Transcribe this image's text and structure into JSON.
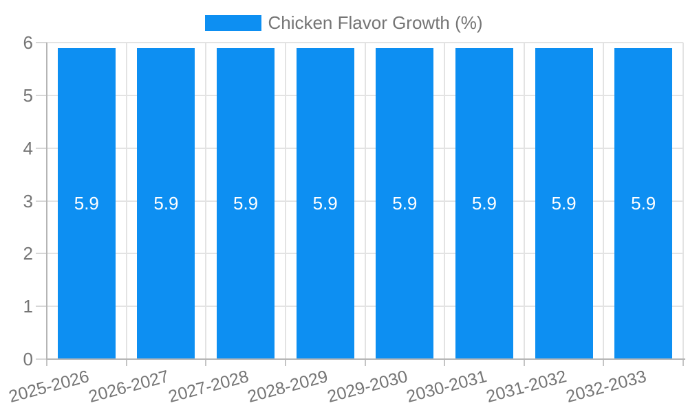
{
  "chart_data": {
    "type": "bar",
    "title": "",
    "legend": {
      "label": "Chicken Flavor Growth (%)",
      "position": "top-center"
    },
    "categories": [
      "2025-2026",
      "2026-2027",
      "2027-2028",
      "2028-2029",
      "2029-2030",
      "2030-2031",
      "2031-2032",
      "2032-2033"
    ],
    "series": [
      {
        "name": "Chicken Flavor Growth (%)",
        "color": "#0D8FF2",
        "values": [
          5.9,
          5.9,
          5.9,
          5.9,
          5.9,
          5.9,
          5.9,
          5.9
        ]
      }
    ],
    "value_labels": [
      "5.9",
      "5.9",
      "5.9",
      "5.9",
      "5.9",
      "5.9",
      "5.9",
      "5.9"
    ],
    "value_label_color": "#FFFFFF",
    "xlabel": "",
    "ylabel": "",
    "ylim": [
      0,
      6
    ],
    "yticks": [
      0,
      1,
      2,
      3,
      4,
      5,
      6
    ],
    "x_tick_rotation_deg": -15,
    "grid": true,
    "style": {
      "background": "#FFFFFF",
      "grid_color": "#E3E3E3",
      "tick_stub_color": "#D6D6D6",
      "axis_line_color": "#B5B5B5",
      "x_tick_color": "#C4C4C4",
      "tick_label_color": "#757575",
      "legend_label_color": "#757575"
    }
  }
}
